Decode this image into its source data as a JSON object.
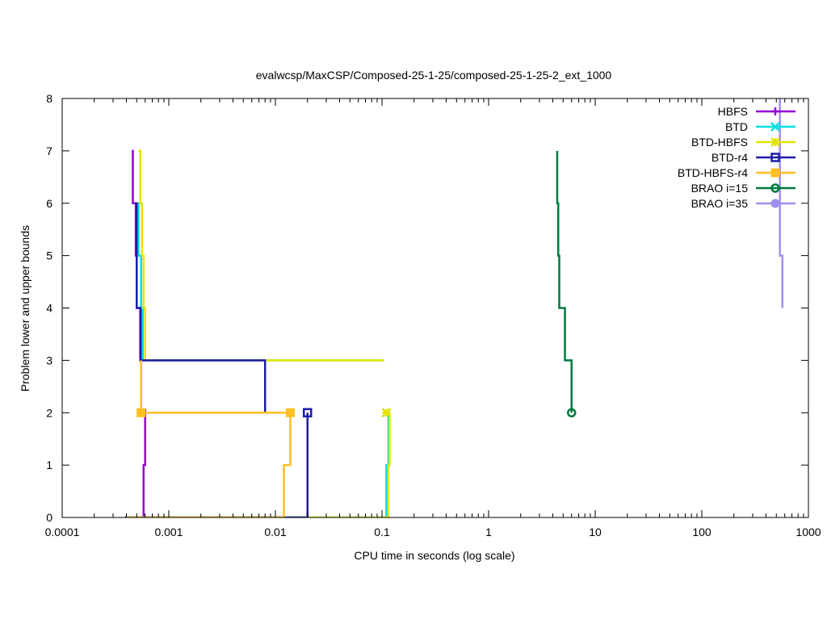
{
  "chart_data": {
    "type": "line",
    "title": "evalwcsp/MaxCSP/Composed-25-1-25/composed-25-1-25-2_ext_1000",
    "xlabel": "CPU time in seconds (log scale)",
    "ylabel": "Problem lower and upper bounds",
    "x_scale": "log",
    "xlim": [
      0.0001,
      1000
    ],
    "ylim": [
      0,
      8
    ],
    "x_ticks": [
      {
        "value": 0.0001,
        "label": "0.0001"
      },
      {
        "value": 0.001,
        "label": "0.001"
      },
      {
        "value": 0.01,
        "label": "0.01"
      },
      {
        "value": 0.1,
        "label": "0.1"
      },
      {
        "value": 1,
        "label": "1"
      },
      {
        "value": 10,
        "label": "10"
      },
      {
        "value": 100,
        "label": "100"
      },
      {
        "value": 1000,
        "label": "1000"
      }
    ],
    "y_ticks": [
      {
        "value": 0,
        "label": "0"
      },
      {
        "value": 1,
        "label": "1"
      },
      {
        "value": 2,
        "label": "2"
      },
      {
        "value": 3,
        "label": "3"
      },
      {
        "value": 4,
        "label": "4"
      },
      {
        "value": 5,
        "label": "5"
      },
      {
        "value": 6,
        "label": "6"
      },
      {
        "value": 7,
        "label": "7"
      },
      {
        "value": 8,
        "label": "8"
      }
    ],
    "grid": false,
    "legend_position": "top-right",
    "series": [
      {
        "name": "HBFS",
        "color": "#9400d3",
        "marker": "plus",
        "upper": [
          [
            0.00045,
            7
          ],
          [
            0.00046,
            6
          ],
          [
            0.00049,
            5
          ],
          [
            0.0005,
            4
          ],
          [
            0.00055,
            3
          ],
          [
            0.00055,
            2
          ]
        ],
        "lower": [
          [
            0.00039,
            0
          ],
          [
            0.00058,
            0
          ],
          [
            0.00058,
            1
          ],
          [
            0.0006,
            1
          ],
          [
            0.0006,
            2
          ]
        ],
        "optimum": [
          0.0006,
          2
        ]
      },
      {
        "name": "BTD",
        "color": "#00e0e0",
        "marker": "x",
        "upper": [
          [
            0.0005,
            6
          ],
          [
            0.00052,
            5
          ],
          [
            0.00055,
            4
          ],
          [
            0.00057,
            3
          ],
          [
            0.1,
            3
          ]
        ],
        "lower": [
          [
            0.0004,
            0
          ],
          [
            0.11,
            0
          ],
          [
            0.11,
            1
          ],
          [
            0.115,
            1
          ],
          [
            0.115,
            2
          ]
        ],
        "optimum": [
          0.11,
          2
        ]
      },
      {
        "name": "BTD-HBFS",
        "color": "#e5e500",
        "marker": "x-bold",
        "upper": [
          [
            0.00052,
            7
          ],
          [
            0.00054,
            6
          ],
          [
            0.00056,
            5
          ],
          [
            0.00058,
            4
          ],
          [
            0.0006,
            3
          ],
          [
            0.105,
            3
          ]
        ],
        "lower": [
          [
            0.0004,
            0
          ],
          [
            0.115,
            0
          ],
          [
            0.115,
            1
          ],
          [
            0.118,
            1
          ],
          [
            0.118,
            2
          ]
        ],
        "optimum": [
          0.11,
          2
        ]
      },
      {
        "name": "BTD-r4",
        "color": "#1c1ca8",
        "marker": "square-open",
        "upper": [
          [
            0.00048,
            6
          ],
          [
            0.0005,
            5
          ],
          [
            0.0005,
            4
          ],
          [
            0.00054,
            3
          ],
          [
            0.008,
            3
          ],
          [
            0.008,
            2
          ]
        ],
        "lower": [
          [
            0.00039,
            0
          ],
          [
            0.02,
            0
          ],
          [
            0.02,
            2
          ]
        ],
        "optimum": [
          0.02,
          2
        ]
      },
      {
        "name": "BTD-HBFS-r4",
        "color": "#ffc020",
        "marker": "square-filled",
        "upper": [
          [
            0.00055,
            3
          ],
          [
            0.00055,
            2
          ],
          [
            0.0138,
            2
          ]
        ],
        "lower": [
          [
            0.0004,
            0
          ],
          [
            0.012,
            0
          ],
          [
            0.012,
            1
          ],
          [
            0.0138,
            1
          ],
          [
            0.0138,
            2
          ]
        ],
        "optimum": [
          0.00055,
          2
        ],
        "extra_markers": [
          [
            0.0138,
            2
          ]
        ]
      },
      {
        "name": "BRAO i=15",
        "color": "#007a3d",
        "marker": "circle-open",
        "upper": [
          [
            4.4,
            7
          ],
          [
            4.4,
            6
          ],
          [
            4.5,
            6
          ],
          [
            4.5,
            5
          ],
          [
            4.6,
            5
          ],
          [
            4.6,
            4
          ],
          [
            5.2,
            4
          ],
          [
            5.2,
            3
          ],
          [
            6.0,
            3
          ],
          [
            6.0,
            2
          ]
        ],
        "lower": [],
        "optimum": [
          6.0,
          2
        ]
      },
      {
        "name": "BRAO i=35",
        "color": "#9f8ff0",
        "marker": "circle-filled",
        "upper": [
          [
            540,
            8
          ],
          [
            540,
            5
          ],
          [
            570,
            5
          ],
          [
            570,
            4
          ]
        ],
        "lower": [],
        "optimum": null
      }
    ]
  }
}
